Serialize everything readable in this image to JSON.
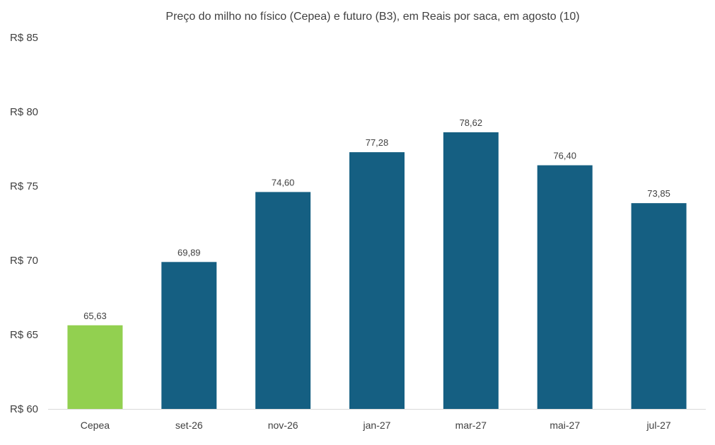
{
  "chart_data": {
    "type": "bar",
    "title": "Preço do milho no físico (Cepea) e futuro (B3), em Reais por saca, em agosto (10)",
    "categories": [
      "Cepea",
      "set-26",
      "nov-26",
      "jan-27",
      "mar-27",
      "mai-27",
      "jul-27"
    ],
    "values": [
      65.63,
      69.89,
      74.6,
      77.28,
      78.62,
      76.4,
      73.85
    ],
    "data_labels": [
      "65,63",
      "69,89",
      "74,60",
      "77,28",
      "78,62",
      "76,40",
      "73,85"
    ],
    "ylim": [
      60,
      85
    ],
    "yticks": [
      60,
      65,
      70,
      75,
      80,
      85
    ],
    "ytick_labels": [
      "R$ 60",
      "R$ 65",
      "R$ 70",
      "R$ 75",
      "R$ 80",
      "R$ 85"
    ],
    "xlabel": "",
    "ylabel": "",
    "grid": false,
    "legend": "none",
    "colors": {
      "Cepea": "#92d050",
      "futures": "#155f82"
    }
  }
}
